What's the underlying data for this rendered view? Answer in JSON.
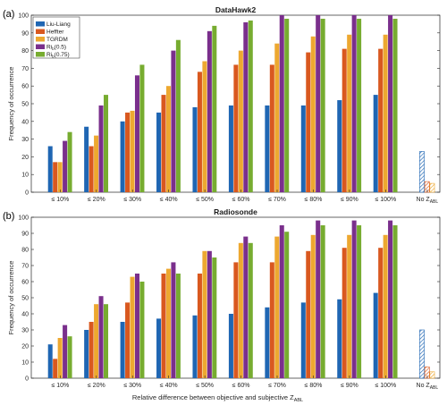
{
  "colors": {
    "Liu-Liang": "#1f66b3",
    "Heffter": "#d9581f",
    "TGRDM": "#eda830",
    "Ri_b(0.5)": "#7a2f8c",
    "Ri_b(0.75)": "#77ac30"
  },
  "shared": {
    "ylabel": "Frequency of occurrence",
    "xlabel": "Relative difference between objective and subjective Z",
    "xlabel_sub": "ABL",
    "categories": [
      "≤ 10%",
      "≤ 20%",
      "≤ 30%",
      "≤ 40%",
      "≤ 50%",
      "≤ 60%",
      "≤ 70%",
      "≤ 80%",
      "≤ 90%",
      "≤ 100%"
    ],
    "extra_category": "No Z",
    "extra_category_sub": "ABL",
    "yticks": [
      "0",
      "10",
      "20",
      "30",
      "40",
      "50",
      "60",
      "70",
      "80",
      "90",
      "100"
    ]
  },
  "chart_data": [
    {
      "type": "bar",
      "panel": "(a)",
      "title": "DataHawk2",
      "ylim": [
        0,
        100
      ],
      "legend_placement": "top-left",
      "legend": [
        "Liu-Liang",
        "Heffter",
        "TGRDM",
        "Ri",
        "Ri"
      ],
      "legend_sub": [
        "",
        "",
        "",
        "b",
        "b"
      ],
      "legend_suffix": [
        "",
        "",
        "",
        "(0.5)",
        "(0.75)"
      ],
      "series": [
        {
          "name": "Liu-Liang",
          "values": [
            26,
            37,
            40,
            45,
            48,
            49,
            49,
            49,
            52,
            55
          ]
        },
        {
          "name": "Heffter",
          "values": [
            17,
            26,
            45,
            55,
            68,
            72,
            72,
            79,
            81,
            81
          ]
        },
        {
          "name": "TGRDM",
          "values": [
            17,
            32,
            46,
            60,
            74,
            80,
            84,
            88,
            89,
            89
          ]
        },
        {
          "name": "Ri_b(0.5)",
          "values": [
            29,
            49,
            66,
            80,
            91,
            96,
            100,
            100,
            100,
            100
          ]
        },
        {
          "name": "Ri_b(0.75)",
          "values": [
            34,
            55,
            72,
            86,
            94,
            97,
            98,
            98,
            98,
            98
          ]
        }
      ],
      "no_zabl": [
        23,
        6,
        5
      ]
    },
    {
      "type": "bar",
      "panel": "(b)",
      "title": "Radiosonde",
      "ylim": [
        0,
        100
      ],
      "series": [
        {
          "name": "Liu-Liang",
          "values": [
            21,
            30,
            35,
            37,
            39,
            40,
            44,
            47,
            49,
            53
          ]
        },
        {
          "name": "Heffter",
          "values": [
            12,
            35,
            47,
            65,
            65,
            72,
            72,
            79,
            81,
            81
          ]
        },
        {
          "name": "TGRDM",
          "values": [
            25,
            46,
            63,
            68,
            79,
            84,
            88,
            89,
            89,
            89
          ]
        },
        {
          "name": "Ri_b(0.5)",
          "values": [
            33,
            51,
            65,
            72,
            79,
            88,
            95,
            98,
            98,
            98
          ]
        },
        {
          "name": "Ri_b(0.75)",
          "values": [
            26,
            46,
            60,
            65,
            75,
            84,
            91,
            95,
            95,
            95
          ]
        }
      ],
      "no_zabl": [
        30,
        7,
        4
      ]
    }
  ]
}
